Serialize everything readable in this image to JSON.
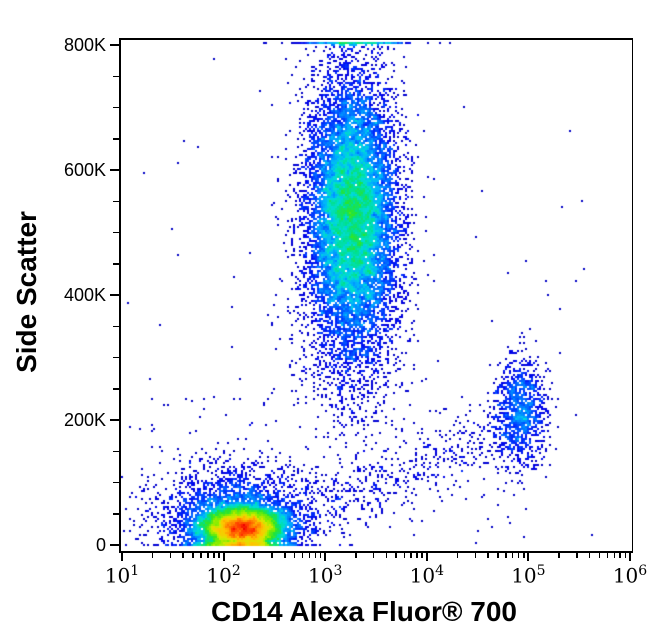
{
  "chart_data": {
    "type": "scatter",
    "subtype": "flow-cytometry-pseudocolor-density-dot-plot",
    "title": "",
    "xlabel": "CD14 Alexa Fluor® 700",
    "ylabel": "Side Scatter",
    "x_scale": "log10",
    "x_range": [
      10,
      1000000
    ],
    "x_tick_base": "10",
    "x_tick_exponents": [
      1,
      2,
      3,
      4,
      5,
      6
    ],
    "x_minor_ticks_per_decade": [
      2,
      3,
      4,
      5,
      6,
      7,
      8,
      9
    ],
    "y_scale": "linear",
    "y_range": [
      0,
      800000
    ],
    "y_tick_values": [
      0,
      200000,
      400000,
      600000,
      800000
    ],
    "y_tick_labels": [
      "0",
      "200K",
      "400K",
      "600K",
      "800K"
    ],
    "y_minor_tick_step": 50000,
    "grid": false,
    "legend": null,
    "axis_color": "#000000",
    "text_color": "#000000",
    "background_color": "#ffffff",
    "density_colormap_stops": [
      [
        0.0,
        "#000090"
      ],
      [
        0.14,
        "#0000e8"
      ],
      [
        0.22,
        "#0033ff"
      ],
      [
        0.3,
        "#0070ff"
      ],
      [
        0.38,
        "#00b0ff"
      ],
      [
        0.45,
        "#00ddd5"
      ],
      [
        0.52,
        "#00e090"
      ],
      [
        0.6,
        "#2ae42a"
      ],
      [
        0.68,
        "#86ee00"
      ],
      [
        0.76,
        "#d8e800"
      ],
      [
        0.84,
        "#ffc400"
      ],
      [
        0.91,
        "#ff7000"
      ],
      [
        0.96,
        "#ff3000"
      ],
      [
        1.0,
        "#ee0000"
      ]
    ],
    "seed": 20240914,
    "populations": [
      {
        "name": "debris-lymphocytes-core",
        "dist": "gaussian",
        "n": 9000,
        "logx_mean": 2.18,
        "logx_sd": 0.2,
        "y_mean": 26000,
        "y_sd": 17000
      },
      {
        "name": "debris-lymphocytes-halo",
        "dist": "gaussian",
        "n": 2600,
        "logx_mean": 2.12,
        "logx_sd": 0.38,
        "y_mean": 48000,
        "y_sd": 38000
      },
      {
        "name": "granulocytes-cd14dim",
        "dist": "gaussian",
        "n": 13000,
        "logx_mean": 3.27,
        "logx_sd": 0.22,
        "y_mean": 525000,
        "y_sd": 110000
      },
      {
        "name": "granulocytes-lower-tail",
        "dist": "gaussian",
        "n": 300,
        "logx_mean": 3.15,
        "logx_sd": 0.3,
        "y_mean": 300000,
        "y_sd": 70000
      },
      {
        "name": "off-scale-top-events",
        "dist": "gaussian",
        "n": 300,
        "logx_mean": 3.3,
        "logx_sd": 0.27,
        "y_mean": 830000,
        "y_sd": 20000
      },
      {
        "name": "monocytes-cd14pos",
        "dist": "gaussian",
        "n": 1050,
        "logx_mean": 4.93,
        "logx_sd": 0.125,
        "y_mean": 215000,
        "y_sd": 43000
      },
      {
        "name": "monocyte-debris-bridge",
        "dist": "line",
        "n": 520,
        "logx_from": 2.75,
        "logx_to": 4.9,
        "y_from": 55000,
        "y_to": 180000,
        "logx_jitter": 0.18,
        "y_jitter": 30000
      },
      {
        "name": "background-low-ssc",
        "dist": "uniform",
        "n": 140,
        "logx_min": 1.05,
        "logx_max": 5.0,
        "y_min": 2000,
        "y_max": 240000
      },
      {
        "name": "background-sparse",
        "dist": "uniform",
        "n": 60,
        "logx_min": 1.05,
        "logx_max": 5.7,
        "y_min": 2000,
        "y_max": 780000
      }
    ]
  }
}
